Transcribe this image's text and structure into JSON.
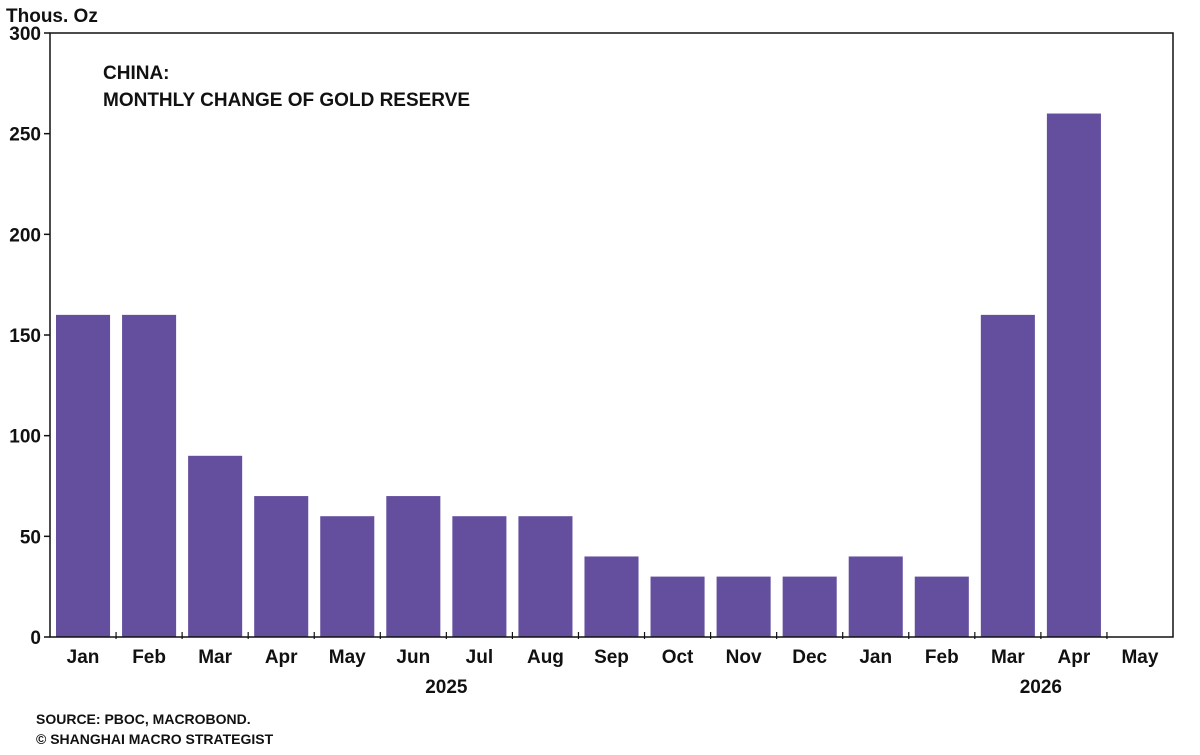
{
  "chart_data": {
    "type": "bar",
    "title": [
      "CHINA:",
      "MONTHLY CHANGE OF GOLD RESERVE"
    ],
    "ylabel": "Thous. Oz",
    "xlabel": "",
    "ylim": [
      0,
      300
    ],
    "yticks": [
      0,
      50,
      100,
      150,
      200,
      250,
      300
    ],
    "categories": [
      "Jan",
      "Feb",
      "Mar",
      "Apr",
      "May",
      "Jun",
      "Jul",
      "Aug",
      "Sep",
      "Oct",
      "Nov",
      "Dec",
      "Jan",
      "Feb",
      "Mar",
      "Apr",
      "May"
    ],
    "values": [
      160,
      160,
      90,
      70,
      60,
      70,
      60,
      60,
      40,
      30,
      30,
      30,
      40,
      30,
      160,
      260,
      null
    ],
    "year_labels": [
      {
        "label": "2025",
        "category_index": 5.5
      },
      {
        "label": "2026",
        "category_index": 14.5
      }
    ],
    "bar_color": "#644f9f",
    "grid": false,
    "legend": "none"
  },
  "source": {
    "line1": "SOURCE: PBOC, MACROBOND.",
    "line2": "© SHANGHAI MACRO STRATEGIST"
  }
}
